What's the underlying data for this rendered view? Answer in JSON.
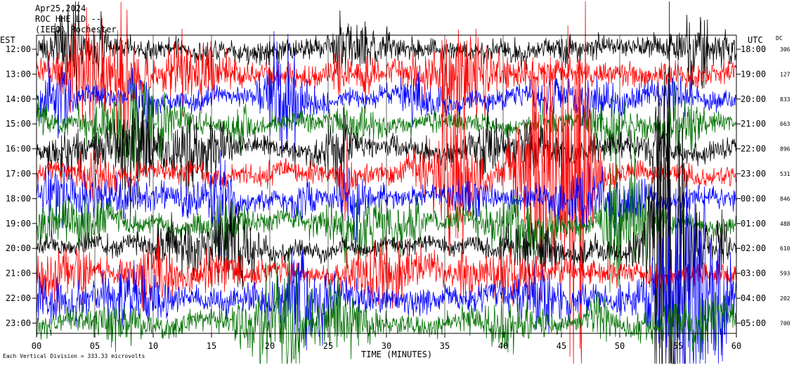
{
  "header": {
    "date": "Apr25,2024",
    "station": "ROC HHE LD --",
    "location": "(IEEO) Rochester"
  },
  "left_axis_title": "EST",
  "right_axis_title": "UTC",
  "dc_title": "DC",
  "footer_scale": "Each Vertical Division =  333.33 microvolts",
  "colors": {
    "trace_cycle": [
      "#000000",
      "#ff0000",
      "#0000ff",
      "#007000"
    ],
    "grid": "#000000",
    "background": "#ffffff"
  },
  "chart_data": {
    "type": "line",
    "subtype": "helicorder",
    "xlabel": "TIME (MINUTES)",
    "xlim": [
      0,
      60
    ],
    "x_ticks": [
      "00",
      "05",
      "10",
      "15",
      "20",
      "25",
      "30",
      "35",
      "40",
      "45",
      "50",
      "55",
      "60"
    ],
    "rows": [
      {
        "est": "12:00",
        "utc": "18:00",
        "dc": "306"
      },
      {
        "est": "13:00",
        "utc": "19:00",
        "dc": "127"
      },
      {
        "est": "14:00",
        "utc": "20:00",
        "dc": "833"
      },
      {
        "est": "15:00",
        "utc": "21:00",
        "dc": "663"
      },
      {
        "est": "16:00",
        "utc": "22:00",
        "dc": "896"
      },
      {
        "est": "17:00",
        "utc": "23:00",
        "dc": "531"
      },
      {
        "est": "18:00",
        "utc": "00:00",
        "dc": "846"
      },
      {
        "est": "19:00",
        "utc": "01:00",
        "dc": "488"
      },
      {
        "est": "20:00",
        "utc": "02:00",
        "dc": "610"
      },
      {
        "est": "21:00",
        "utc": "03:00",
        "dc": "593"
      },
      {
        "est": "22:00",
        "utc": "04:00",
        "dc": "202"
      },
      {
        "est": "23:00",
        "utc": "05:00",
        "dc": "700"
      }
    ],
    "grid": true
  }
}
